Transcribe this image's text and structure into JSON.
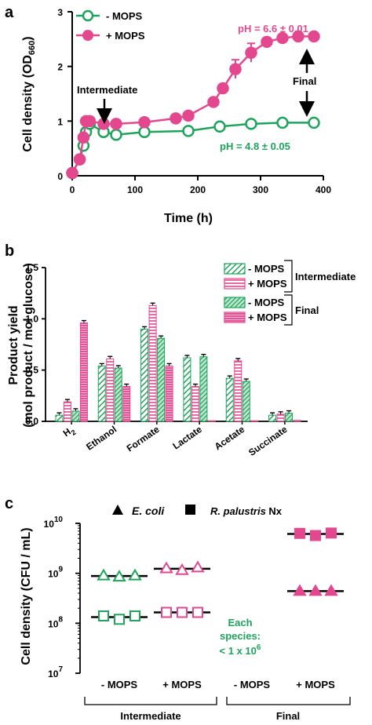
{
  "colors": {
    "green": "#1fa35c",
    "pink": "#e3488f",
    "pink_light": "#f3b8d3",
    "green_light": "#bfe6cd",
    "black": "#000000"
  },
  "chart_data": [
    {
      "type": "line",
      "panel": "a",
      "xlabel": "Time (h)",
      "ylabel_main": "Cell density (OD",
      "ylabel_sub": "660",
      "ylabel_end": ")",
      "xlim": [
        0,
        400
      ],
      "ylim": [
        0,
        3
      ],
      "xticks": [
        "0",
        "100",
        "200",
        "300",
        "400"
      ],
      "yticks": [
        "0",
        "1",
        "2",
        "3"
      ],
      "legend": {
        "minus": "- MOPS",
        "plus": "+ MOPS"
      },
      "series": [
        {
          "name": "- MOPS",
          "x": [
            0,
            12,
            18,
            22,
            28,
            50,
            70,
            115,
            185,
            235,
            285,
            335,
            385
          ],
          "y": [
            0.05,
            0.3,
            0.55,
            0.8,
            0.95,
            0.8,
            0.75,
            0.8,
            0.82,
            0.9,
            0.95,
            0.97,
            0.97
          ]
        },
        {
          "name": "+ MOPS",
          "x": [
            0,
            12,
            18,
            22,
            28,
            50,
            70,
            115,
            165,
            185,
            225,
            240,
            260,
            285,
            310,
            335,
            360,
            385
          ],
          "y": [
            0.05,
            0.3,
            0.7,
            1.0,
            1.0,
            0.95,
            0.95,
            0.98,
            1.05,
            1.1,
            1.35,
            1.6,
            1.95,
            2.25,
            2.45,
            2.52,
            2.55,
            2.55
          ]
        }
      ],
      "annotations": {
        "ph_plus": "pH = 6.6 ± 0.01",
        "ph_minus": "pH = 4.8 ± 0.05",
        "intermediate": "Intermediate",
        "final": "Final"
      }
    },
    {
      "type": "bar",
      "panel": "b",
      "ylabel_line1": "Product  yield",
      "ylabel_line2": "(mol product / mol glucose)",
      "ylim": [
        0,
        1.5
      ],
      "yticks": [
        "0.0",
        "0.5",
        "1.0",
        "1.5"
      ],
      "categories_main": [
        "H",
        "Ethanol",
        "Formate",
        "Lactate",
        "Acetate",
        "Succinate"
      ],
      "h2_subscript": "2",
      "series": [
        {
          "name": "- MOPS",
          "group": "Intermediate",
          "values": [
            0.06,
            0.54,
            0.9,
            0.62,
            0.42,
            0.06
          ]
        },
        {
          "name": "+ MOPS",
          "group": "Intermediate",
          "values": [
            0.19,
            0.61,
            1.13,
            0.34,
            0.59,
            0.07
          ]
        },
        {
          "name": "- MOPS",
          "group": "Final",
          "values": [
            0.1,
            0.52,
            0.81,
            0.63,
            0.39,
            0.08
          ]
        },
        {
          "name": "+ MOPS",
          "group": "Final",
          "values": [
            0.96,
            0.34,
            0.54,
            0.0,
            0.0,
            0.01
          ]
        }
      ],
      "legend_groups": {
        "intermediate": "Intermediate",
        "final": "Final"
      }
    },
    {
      "type": "scatter",
      "panel": "c",
      "ylabel": "Cell density (CFU / mL)",
      "ylog": true,
      "ylim_exp": [
        7,
        10
      ],
      "ytick_base": "10",
      "ytick_exps": [
        "7",
        "8",
        "9",
        "10"
      ],
      "legend": {
        "ecoli": "E. coli",
        "rpal": "R. palustris",
        "rpal_suffix": " Nx"
      },
      "categories": [
        "- MOPS",
        "+ MOPS",
        "- MOPS",
        "+ MOPS"
      ],
      "groups": [
        "Intermediate",
        "Final"
      ],
      "note": {
        "line1": "Each",
        "line2": "species:",
        "line3_base": "< 1 x 10",
        "line3_exp": "6"
      },
      "points": {
        "ecoli_int_minus": [
          900000000,
          850000000,
          900000000
        ],
        "ecoli_int_plus": [
          1250000000,
          1150000000,
          1300000000
        ],
        "rpal_int_minus": [
          140000000,
          120000000,
          140000000
        ],
        "rpal_int_plus": [
          165000000,
          165000000,
          165000000
        ],
        "ecoli_final_plus": [
          440000000,
          440000000,
          440000000
        ],
        "rpal_final_plus": [
          6300000000,
          5700000000,
          6400000000
        ]
      }
    }
  ]
}
